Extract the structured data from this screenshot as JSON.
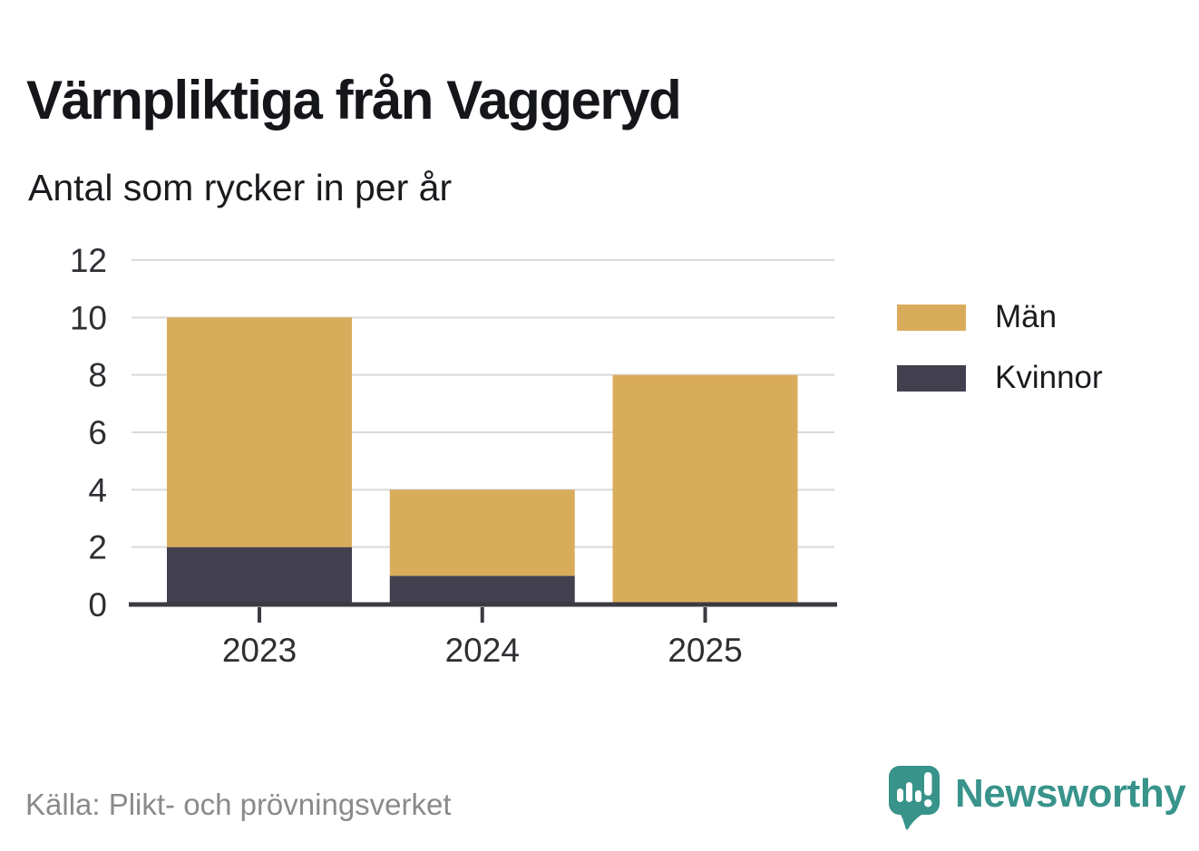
{
  "title": "Värnpliktiga från Vaggeryd",
  "subtitle": "Antal som rycker in per år",
  "source": "Källa: Plikt- och prövningsverket",
  "brand": {
    "name": "Newsworthy",
    "color": "#38938b",
    "icon": "newsworthy-speech-bubble-bar-chart-icon"
  },
  "chart_data": {
    "type": "bar",
    "stacked": true,
    "title": "Värnpliktiga från Vaggeryd",
    "subtitle": "Antal som rycker in per år",
    "categories": [
      "2023",
      "2024",
      "2025"
    ],
    "series": [
      {
        "name": "Män",
        "color": "#d9ac5c",
        "values": [
          8,
          3,
          8
        ]
      },
      {
        "name": "Kvinnor",
        "color": "#42404e",
        "values": [
          2,
          1,
          0
        ]
      }
    ],
    "stack_bottom_to_top": [
      "Kvinnor",
      "Män"
    ],
    "totals": [
      10,
      4,
      8
    ],
    "xlabel": "",
    "ylabel": "",
    "ylim": [
      0,
      12
    ],
    "yticks": [
      0,
      2,
      4,
      6,
      8,
      10,
      12
    ],
    "grid": "horizontal",
    "grid_color": "#d9d9d9",
    "axis_color": "#3a3a40",
    "tick_label_color": "#2e2e33",
    "legend_position": "top-right"
  }
}
